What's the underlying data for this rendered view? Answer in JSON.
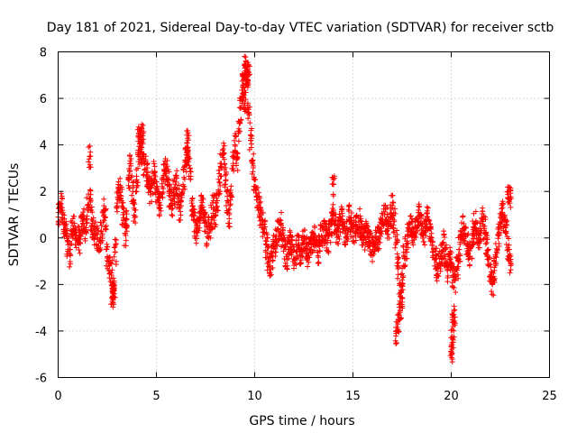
{
  "chart_data": {
    "type": "scatter",
    "title": "Day 181 of 2021, Sidereal Day-to-day VTEC variation (SDTVAR) for receiver sctb",
    "xlabel": "GPS time / hours",
    "ylabel": "SDTVAR / TECUs",
    "xlim": [
      0,
      25
    ],
    "ylim": [
      -6,
      8
    ],
    "xticks": [
      0,
      5,
      10,
      15,
      20,
      25
    ],
    "yticks": [
      -6,
      -4,
      -2,
      0,
      2,
      4,
      6,
      8
    ],
    "grid": true,
    "marker": "+",
    "color": "#ff0000",
    "series": [
      {
        "name": "SDTVAR",
        "x": [
          0.0,
          0.1,
          0.2,
          0.3,
          0.4,
          0.5,
          0.6,
          0.7,
          0.8,
          0.9,
          1.0,
          1.1,
          1.2,
          1.3,
          1.4,
          1.5,
          1.6,
          1.7,
          1.8,
          1.9,
          2.0,
          2.1,
          2.2,
          2.3,
          2.4,
          2.5,
          2.6,
          2.7,
          2.8,
          2.9,
          3.0,
          3.1,
          3.2,
          3.3,
          3.4,
          3.5,
          3.6,
          3.7,
          3.8,
          3.9,
          4.0,
          4.1,
          4.2,
          4.3,
          4.4,
          4.5,
          4.6,
          4.7,
          4.8,
          4.9,
          5.0,
          5.1,
          5.2,
          5.3,
          5.4,
          5.5,
          5.6,
          5.7,
          5.8,
          5.9,
          6.0,
          6.1,
          6.2,
          6.3,
          6.4,
          6.5,
          6.6,
          6.7,
          6.8,
          6.9,
          7.0,
          7.1,
          7.2,
          7.3,
          7.4,
          7.5,
          7.6,
          7.7,
          7.8,
          7.9,
          8.0,
          8.1,
          8.2,
          8.3,
          8.4,
          8.5,
          8.6,
          8.7,
          8.8,
          8.9,
          9.0,
          9.1,
          9.2,
          9.3,
          9.4,
          9.5,
          9.6,
          9.7,
          9.8,
          9.9,
          10.0,
          10.1,
          10.2,
          10.3,
          10.4,
          10.5,
          10.6,
          10.7,
          10.8,
          10.9,
          11.0,
          11.1,
          11.2,
          11.3,
          11.4,
          11.5,
          11.6,
          11.7,
          11.8,
          11.9,
          12.0,
          12.1,
          12.2,
          12.3,
          12.4,
          12.5,
          12.6,
          12.7,
          12.8,
          12.9,
          13.0,
          13.1,
          13.2,
          13.3,
          13.4,
          13.5,
          13.6,
          13.7,
          13.8,
          13.9,
          14.0,
          14.1,
          14.2,
          14.3,
          14.4,
          14.5,
          14.6,
          14.7,
          14.8,
          14.9,
          15.0,
          15.1,
          15.2,
          15.3,
          15.4,
          15.5,
          15.6,
          15.7,
          15.8,
          15.9,
          16.0,
          16.1,
          16.2,
          16.3,
          16.4,
          16.5,
          16.6,
          16.7,
          16.8,
          16.9,
          17.0,
          17.1,
          17.2,
          17.3,
          17.4,
          17.5,
          17.6,
          17.7,
          17.8,
          17.9,
          18.0,
          18.1,
          18.2,
          18.3,
          18.4,
          18.5,
          18.6,
          18.7,
          18.8,
          18.9,
          19.0,
          19.1,
          19.2,
          19.3,
          19.4,
          19.5,
          19.6,
          19.7,
          19.8,
          19.9,
          20.0,
          20.1,
          20.2,
          20.3,
          20.4,
          20.5,
          20.6,
          20.7,
          20.8,
          20.9,
          21.0,
          21.1,
          21.2,
          21.3,
          21.4,
          21.5,
          21.6,
          21.7,
          21.8,
          21.9,
          22.0,
          22.1,
          22.2,
          22.3,
          22.4,
          22.5,
          22.6,
          22.7,
          22.8,
          22.9,
          23.0,
          1.6,
          2.75,
          2.8,
          2.85,
          4.1,
          4.2,
          4.3,
          6.55,
          6.6,
          9.4,
          9.5,
          9.55,
          9.6,
          9.7,
          14.0,
          17.2,
          17.3,
          17.4,
          17.5,
          20.0,
          20.05,
          20.1,
          20.15,
          22.9,
          23.0
        ],
        "y": [
          0.9,
          1.5,
          1.3,
          0.6,
          0.2,
          -0.5,
          -0.7,
          0.3,
          0.4,
          0.1,
          0.0,
          -0.2,
          0.5,
          0.8,
          0.3,
          1.2,
          1.7,
          0.8,
          0.4,
          0.2,
          0.0,
          -0.5,
          0.3,
          1.2,
          0.9,
          -0.8,
          -1.2,
          -1.5,
          -2.1,
          -0.6,
          1.5,
          2.1,
          1.8,
          1.0,
          0.2,
          0.8,
          2.5,
          3.1,
          2.0,
          1.2,
          2.5,
          3.5,
          3.9,
          3.6,
          3.2,
          2.7,
          2.3,
          2.0,
          2.4,
          2.8,
          2.1,
          1.6,
          1.4,
          2.2,
          2.9,
          3.0,
          2.5,
          1.8,
          1.5,
          2.0,
          2.4,
          1.8,
          1.3,
          1.9,
          2.6,
          3.3,
          3.7,
          3.0,
          1.5,
          0.8,
          0.3,
          0.5,
          0.9,
          1.4,
          1.2,
          0.7,
          0.2,
          0.5,
          0.9,
          1.3,
          1.0,
          1.6,
          2.4,
          3.2,
          3.6,
          2.7,
          1.6,
          1.0,
          1.8,
          3.2,
          4.0,
          3.4,
          4.6,
          5.6,
          6.2,
          5.8,
          6.6,
          5.4,
          4.2,
          3.2,
          2.5,
          1.8,
          1.4,
          1.0,
          0.6,
          0.2,
          -0.3,
          -0.9,
          -1.2,
          -0.8,
          -0.4,
          -0.1,
          0.4,
          0.6,
          0.1,
          -0.4,
          -0.8,
          -0.5,
          -0.2,
          -0.5,
          -0.9,
          -0.6,
          -0.3,
          -0.7,
          -0.3,
          -0.1,
          -0.4,
          -0.8,
          -0.5,
          -0.2,
          0.0,
          -0.3,
          -0.6,
          -0.2,
          0.1,
          0.3,
          0.1,
          -0.2,
          0.2,
          0.6,
          1.0,
          0.7,
          0.3,
          0.5,
          0.8,
          0.4,
          0.2,
          0.4,
          0.9,
          0.6,
          0.3,
          0.2,
          0.5,
          0.7,
          0.4,
          0.1,
          0.0,
          0.2,
          0.0,
          -0.2,
          -0.5,
          -0.3,
          -0.1,
          0.0,
          0.3,
          0.6,
          1.0,
          0.8,
          0.4,
          0.9,
          1.3,
          0.7,
          -0.2,
          -1.2,
          -2.5,
          -1.8,
          -0.8,
          -0.4,
          0.1,
          0.6,
          0.4,
          0.0,
          0.3,
          0.7,
          1.0,
          0.5,
          0.2,
          0.6,
          0.9,
          0.4,
          0.0,
          -0.5,
          -0.9,
          -1.3,
          -1.1,
          -0.6,
          -0.2,
          -0.8,
          -1.4,
          -0.9,
          -1.1,
          -1.6,
          -1.8,
          -1.3,
          -0.5,
          0.1,
          0.4,
          0.2,
          -0.3,
          -0.8,
          -0.4,
          0.2,
          0.6,
          0.3,
          0.0,
          0.4,
          0.8,
          0.5,
          -0.2,
          -0.9,
          -1.6,
          -2.0,
          -1.4,
          -0.6,
          0.1,
          0.6,
          1.1,
          0.8,
          0.2,
          -0.5,
          -1.0,
          3.5,
          -2.3,
          -2.5,
          -2.4,
          4.3,
          4.1,
          4.4,
          4.1,
          3.9,
          7.0,
          7.3,
          7.1,
          6.9,
          7.0,
          2.3,
          -4.1,
          -3.5,
          -3.2,
          -2.6,
          -4.9,
          -4.5,
          -3.8,
          -3.4,
          2.0,
          1.7
        ]
      }
    ]
  }
}
